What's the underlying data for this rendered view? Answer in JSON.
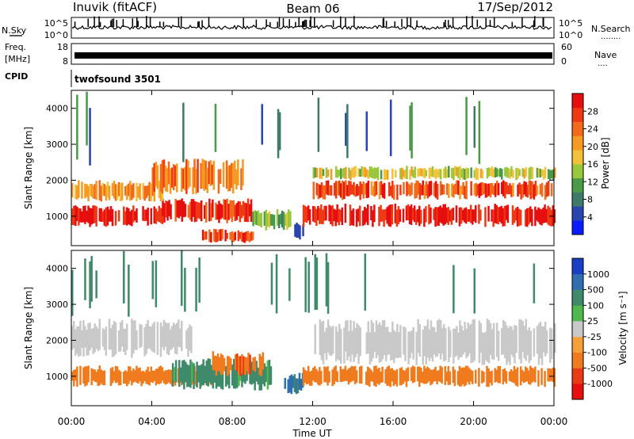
{
  "header": {
    "station": "Inuvik (fitACF)",
    "beam": "Beam 06",
    "date": "17/Sep/2012"
  },
  "top_panels": {
    "nsky_label": "N.Sky",
    "nsearch_label": "N.Search",
    "nsearch_dots": "........",
    "freq_label": "Freq.",
    "freq_unit": "[MHz]",
    "nave_label": "Nave",
    "nave_dots": "....",
    "cpid_label": "CPID",
    "cpid_value": "twofsound 3501",
    "noise_ticks_left": [
      "10^5",
      "10^0"
    ],
    "noise_ticks_right": [
      "10^5",
      "10^0"
    ],
    "freq_ticks": [
      "18",
      "8"
    ],
    "nave_ticks": [
      "60",
      "0"
    ]
  },
  "x_axis": {
    "label": "Time UT",
    "ticks": [
      "00:00",
      "04:00",
      "08:00",
      "12:00",
      "16:00",
      "20:00",
      "00:00"
    ],
    "range_hours": [
      0,
      24
    ]
  },
  "colorbars": {
    "power": {
      "label": "Power [dB]",
      "ticks": [
        "28",
        "24",
        "20",
        "16",
        "12",
        "8",
        "4"
      ],
      "colors": [
        "#0a1bff",
        "#2a45b0",
        "#3f7a6a",
        "#4a9a4a",
        "#9ac83c",
        "#f2c23a",
        "#f59a24",
        "#f26a1a",
        "#ee3a14",
        "#e60e0e"
      ]
    },
    "velocity": {
      "label": "Velocity [m s⁻¹]",
      "ticks": [
        "1000",
        "500",
        "100",
        "25",
        "-25",
        "-100",
        "-500",
        "-1000"
      ],
      "colors": [
        "#1a3fc4",
        "#2f6fb0",
        "#3f8a6a",
        "#4fb84f",
        "#c9c9c9",
        "#f5a03a",
        "#f07a1e",
        "#e83a14",
        "#e60e0e"
      ]
    }
  },
  "chart_data": [
    {
      "type": "heatmap",
      "title": "Power",
      "xlabel": "Time UT",
      "ylabel": "Slant Range [km]",
      "xlim": [
        0,
        24
      ],
      "ylim": [
        180,
        4500
      ],
      "y_ticks": [
        1000,
        2000,
        3000,
        4000
      ],
      "colorbar_label": "Power [dB]",
      "colorbar_range": [
        0,
        30
      ],
      "colorbar_ticks": [
        28,
        24,
        20,
        16,
        12,
        8,
        4
      ],
      "bands": [
        {
          "t0": 0.0,
          "t1": 4.5,
          "r0": 700,
          "r1": 1300,
          "value": 28
        },
        {
          "t0": 4.5,
          "t1": 9.0,
          "r0": 800,
          "r1": 1500,
          "value": 27
        },
        {
          "t0": 6.5,
          "t1": 9.0,
          "r0": 250,
          "r1": 650,
          "value": 26
        },
        {
          "t0": 0.0,
          "t1": 4.5,
          "r0": 1400,
          "r1": 2000,
          "value": 20
        },
        {
          "t0": 4.0,
          "t1": 8.5,
          "r0": 1600,
          "r1": 2600,
          "value": 22
        },
        {
          "t0": 9.0,
          "t1": 11.0,
          "r0": 600,
          "r1": 1200,
          "value": 12
        },
        {
          "t0": 11.0,
          "t1": 11.5,
          "r0": 300,
          "r1": 900,
          "value": 5
        },
        {
          "t0": 11.5,
          "t1": 24.0,
          "r0": 700,
          "r1": 1350,
          "value": 28
        },
        {
          "t0": 12.0,
          "t1": 24.0,
          "r0": 1450,
          "r1": 2000,
          "value": 24
        },
        {
          "t0": 12.0,
          "t1": 24.0,
          "r0": 2000,
          "r1": 2400,
          "value": 15
        },
        {
          "t0": 0.0,
          "t1": 24.0,
          "r0": 2400,
          "r1": 4500,
          "value": 8
        }
      ]
    },
    {
      "type": "heatmap",
      "title": "Velocity",
      "xlabel": "Time UT",
      "ylabel": "Slant Range [km]",
      "xlim": [
        0,
        24
      ],
      "ylim": [
        180,
        4500
      ],
      "y_ticks": [
        1000,
        2000,
        3000,
        4000
      ],
      "colorbar_label": "Velocity [m s⁻¹]",
      "colorbar_ticks": [
        1000,
        500,
        100,
        25,
        -25,
        -100,
        -500,
        -1000
      ],
      "bands": [
        {
          "t0": 0.0,
          "t1": 7.0,
          "r0": 700,
          "r1": 1300,
          "value": -300
        },
        {
          "t0": 5.0,
          "t1": 10.0,
          "r0": 600,
          "r1": 1500,
          "value": 150
        },
        {
          "t0": 7.0,
          "t1": 9.5,
          "r0": 1000,
          "r1": 1700,
          "value": -400
        },
        {
          "t0": 10.5,
          "t1": 11.5,
          "r0": 500,
          "r1": 1100,
          "value": 700
        },
        {
          "t0": 11.5,
          "t1": 24.0,
          "r0": 700,
          "r1": 1300,
          "value": -300
        },
        {
          "t0": 12.0,
          "t1": 24.0,
          "r0": 1300,
          "r1": 2600,
          "value": 0
        },
        {
          "t0": 0.0,
          "t1": 6.0,
          "r0": 1500,
          "r1": 2600,
          "value": 0
        },
        {
          "t0": 0.0,
          "t1": 24.0,
          "r0": 2600,
          "r1": 4500,
          "value": 200
        }
      ]
    }
  ]
}
